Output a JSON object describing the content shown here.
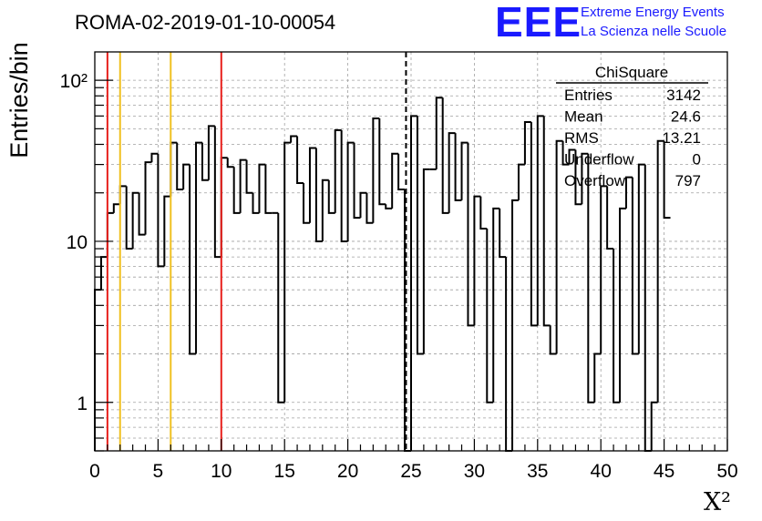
{
  "header": {
    "title": "ROMA-02-2019-01-10-00054",
    "logo_letters": "EEE",
    "logo_line1": "Extreme Energy Events",
    "logo_line2": "La Scienza nelle Scuole"
  },
  "stats_box": {
    "name": "ChiSquare",
    "rows": [
      {
        "label": "Entries",
        "value": "3142"
      },
      {
        "label": "Mean",
        "value": "24.6"
      },
      {
        "label": "RMS",
        "value": "13.21"
      },
      {
        "label": "Underflow",
        "value": "0"
      },
      {
        "label": "Overflow",
        "value": "797"
      }
    ]
  },
  "colors": {
    "histogram": "#000000",
    "red_line": "#e8201c",
    "yellow_line": "#f0c020",
    "grid": "#a0a0a0",
    "logo": "#1a1aff"
  },
  "chart_data": {
    "type": "histogram",
    "title": "ROMA-02-2019-01-10-00054",
    "xlabel": "X²",
    "ylabel": "Entries/bin",
    "xlim": [
      0,
      50
    ],
    "ylim": [
      0.5,
      150
    ],
    "yscale": "log",
    "grid": true,
    "bin_width": 0.5,
    "x_ticks": [
      0,
      5,
      10,
      15,
      20,
      25,
      30,
      35,
      40,
      45,
      50
    ],
    "x_tick_labels": [
      "0",
      "5",
      "10",
      "15",
      "20",
      "25",
      "30",
      "35",
      "40",
      "45",
      "50"
    ],
    "y_tick_labels": [
      {
        "value": 1,
        "text": "1"
      },
      {
        "value": 10,
        "text": "10"
      },
      {
        "value": 100,
        "text": "10²"
      }
    ],
    "bin_counts": [
      5,
      8,
      15,
      17,
      22,
      9,
      20,
      11,
      31,
      35,
      7,
      19,
      41,
      21,
      30,
      2,
      41,
      24,
      52,
      8,
      33,
      29,
      15,
      32,
      20,
      15,
      30,
      15,
      15,
      1,
      41,
      45,
      23,
      13,
      38,
      10,
      24,
      15,
      49,
      10,
      41,
      14,
      20,
      13,
      58,
      17,
      16,
      35,
      21,
      0,
      60,
      2,
      28,
      28,
      78,
      15,
      47,
      18,
      41,
      3,
      19,
      12,
      1,
      16,
      8,
      0,
      18,
      30,
      55,
      3,
      60,
      3,
      2,
      42,
      30,
      37,
      17,
      35,
      1,
      2,
      22,
      9,
      1,
      16,
      25,
      2,
      30,
      0,
      1,
      42,
      14
    ],
    "vertical_lines": [
      {
        "x": 1.0,
        "color": "red",
        "style": "solid"
      },
      {
        "x": 2.0,
        "color": "yellow",
        "style": "solid"
      },
      {
        "x": 6.0,
        "color": "yellow",
        "style": "solid"
      },
      {
        "x": 10.0,
        "color": "red",
        "style": "solid"
      },
      {
        "x": 24.6,
        "color": "black",
        "style": "dashed"
      }
    ]
  }
}
